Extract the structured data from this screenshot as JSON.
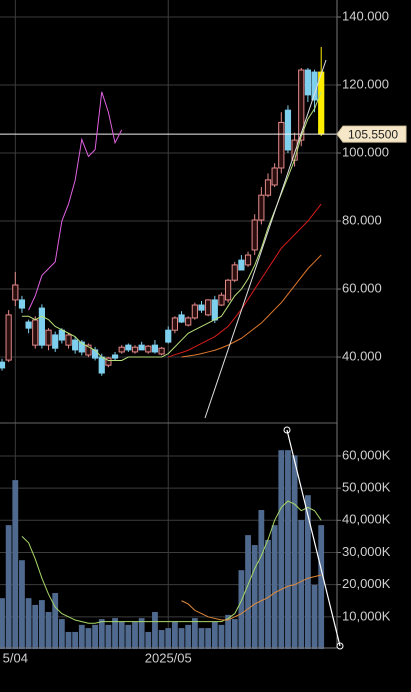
{
  "chart_data": [
    {
      "type": "candlestick",
      "categories": [
        null,
        null,
        "5/04",
        null,
        null,
        null,
        null,
        null,
        null,
        null,
        null,
        null,
        null,
        null,
        null,
        null,
        null,
        null,
        null,
        null,
        null,
        null,
        null,
        null,
        null,
        "2025/05",
        null,
        null,
        null,
        null,
        null,
        null,
        null,
        null,
        null,
        null,
        null,
        null,
        null,
        null,
        null,
        null,
        null,
        null,
        null,
        null,
        null,
        null,
        null
      ],
      "open": [
        38.5,
        39.1,
        56.8,
        56.8,
        50.3,
        43.5,
        54.4,
        43.5,
        46.5,
        47.9,
        43.5,
        45,
        44.4,
        40.6,
        42.1,
        40,
        37.6,
        40.6,
        41.5,
        43.5,
        41.5,
        43.5,
        41.5,
        43.5,
        40.9,
        47.9,
        47.9,
        52.4,
        49.4,
        51.5,
        55.3,
        52.4,
        56.8,
        55.3,
        56.8,
        62.6,
        68.5,
        67.1,
        71.5,
        80.3,
        87.6,
        90.6,
        95.6,
        112.6,
        97.9,
        103.8,
        124.4,
        123.8,
        123.8
      ],
      "high": [
        39.5,
        53.8,
        65,
        58,
        51,
        52,
        55.5,
        48.5,
        47.5,
        48.5,
        47,
        46,
        45,
        44,
        43,
        41,
        40,
        41.5,
        43.5,
        44,
        43.5,
        44.5,
        43.5,
        45,
        43,
        49,
        52,
        53.5,
        52,
        56,
        56.5,
        57,
        58,
        59,
        63,
        68,
        70,
        71,
        82,
        90,
        94,
        97,
        112,
        114,
        106,
        125,
        125,
        124.5,
        131.2
      ],
      "low": [
        36,
        38.5,
        55,
        53,
        47,
        42.5,
        42.5,
        42,
        41.5,
        44,
        42.5,
        41,
        40.5,
        40,
        39,
        34.5,
        37,
        39,
        41,
        41.5,
        41,
        42,
        41,
        41,
        40.5,
        44,
        47,
        50,
        49,
        51,
        53,
        52,
        50,
        55,
        56,
        62,
        66,
        66.5,
        70,
        79,
        87,
        90,
        94,
        100,
        96,
        102,
        115,
        112,
        105
      ],
      "close": [
        36.8,
        52.4,
        61.2,
        54.4,
        48.5,
        50.9,
        43.5,
        47.9,
        42.6,
        45,
        46.5,
        42.1,
        41.5,
        43.5,
        39.7,
        35.3,
        39.7,
        39.7,
        42.9,
        42.1,
        42.9,
        42.1,
        43.2,
        41.5,
        42.6,
        44.4,
        51.5,
        50.3,
        51.5,
        55.3,
        53.8,
        56.8,
        50.9,
        58.2,
        62.6,
        67.1,
        65.6,
        70,
        80.3,
        87.6,
        92.1,
        95.6,
        109,
        100.9,
        103.8,
        124.4,
        117.1,
        115.6,
        105.55
      ],
      "up_color": "#e48a8a",
      "down_color": "#7fd0ee",
      "last_color": "#ffee00",
      "lines": [
        {
          "color": "#e060e0",
          "values": [
            null,
            null,
            null,
            null,
            53.8,
            58,
            64,
            66,
            68,
            80,
            85,
            92,
            104,
            99,
            101,
            118,
            112,
            103,
            106.8,
            null,
            null,
            null,
            null,
            null,
            null,
            null,
            null,
            null,
            null,
            null,
            null,
            null,
            null,
            null,
            null,
            null,
            null,
            null,
            null,
            null,
            null,
            null,
            null,
            null,
            null,
            null,
            null,
            null,
            null
          ]
        },
        {
          "color": "#b8e07a",
          "values": [
            null,
            null,
            null,
            52,
            52,
            51,
            52,
            51,
            49,
            48,
            47,
            46,
            44,
            43,
            42,
            40,
            39,
            39,
            39,
            40,
            40,
            40,
            40,
            40,
            40,
            41,
            43,
            45,
            47,
            48,
            49,
            50,
            51,
            52,
            55,
            58,
            60,
            63,
            67,
            72,
            78,
            83,
            88,
            93,
            98,
            105,
            110,
            113,
            118
          ]
        },
        {
          "color": "#d81c1c",
          "values": [
            null,
            null,
            null,
            null,
            null,
            null,
            null,
            null,
            null,
            null,
            null,
            null,
            null,
            null,
            null,
            null,
            null,
            null,
            null,
            null,
            null,
            null,
            null,
            null,
            null,
            40,
            40.7,
            41.3,
            42,
            43,
            44,
            45,
            46,
            47.5,
            49,
            51.5,
            54,
            57,
            60,
            63,
            66,
            69,
            72,
            74,
            76,
            78,
            80,
            82.5,
            85
          ]
        },
        {
          "color": "#e0782c",
          "values": [
            null,
            null,
            null,
            null,
            null,
            null,
            null,
            null,
            null,
            null,
            null,
            null,
            null,
            null,
            null,
            null,
            null,
            null,
            null,
            null,
            null,
            null,
            null,
            null,
            null,
            null,
            null,
            40,
            40.3,
            40.6,
            41,
            41.5,
            42,
            42.7,
            43.5,
            44.5,
            45.5,
            47,
            48.5,
            50,
            52,
            54,
            56,
            58.5,
            61,
            63.5,
            66,
            68,
            70
          ]
        }
      ],
      "last": {
        "value": 105.55,
        "label": "105.5500"
      },
      "ylim": [
        20.9,
        145
      ],
      "yticks": [
        {
          "value": 140,
          "label": "140.000"
        },
        {
          "value": 120,
          "label": "120.000"
        },
        {
          "value": 100,
          "label": "100.000"
        },
        {
          "value": 80,
          "label": "80.000"
        },
        {
          "value": 60,
          "label": "60.000"
        },
        {
          "value": 40,
          "label": "40.000"
        }
      ],
      "grid": true
    },
    {
      "type": "bar",
      "values": [
        15800,
        38500,
        52500,
        27600,
        15800,
        13700,
        15200,
        11500,
        17400,
        9300,
        5300,
        5300,
        7500,
        6500,
        7500,
        9300,
        7500,
        9600,
        8400,
        7500,
        8400,
        9600,
        5300,
        11500,
        5900,
        6500,
        8400,
        6500,
        7500,
        9600,
        6500,
        6500,
        8400,
        7500,
        10600,
        9300,
        24500,
        35400,
        32300,
        43200,
        33900,
        38500,
        61800,
        61800,
        60200,
        40100,
        47800,
        19900,
        38500
      ],
      "color": "#4f6a8e",
      "lines": [
        {
          "color": "#a8d868",
          "values": [
            null,
            null,
            null,
            35000,
            33000,
            28000,
            22000,
            17000,
            13000,
            11000,
            10000,
            9000,
            8500,
            8000,
            8000,
            8500,
            8500,
            8500,
            8500,
            8500,
            8500,
            8500,
            8500,
            8500,
            8500,
            8500,
            8500,
            8500,
            8500,
            8500,
            8500,
            8500,
            8500,
            8500,
            9500,
            11000,
            15000,
            20000,
            25000,
            29000,
            34000,
            40000,
            44000,
            46000,
            45000,
            43000,
            44000,
            43000,
            40000
          ]
        },
        {
          "color": "#e08a3c",
          "values": [
            null,
            null,
            null,
            null,
            null,
            null,
            null,
            null,
            null,
            null,
            null,
            null,
            null,
            null,
            null,
            null,
            null,
            null,
            null,
            null,
            null,
            null,
            null,
            null,
            null,
            null,
            null,
            15000,
            14000,
            12000,
            11000,
            10000,
            9500,
            9000,
            9000,
            10000,
            11000,
            12500,
            14000,
            15000,
            16000,
            17500,
            18500,
            19500,
            20000,
            21000,
            22000,
            22500,
            23000
          ]
        }
      ],
      "ylim": [
        0,
        69000
      ],
      "yticks": [
        {
          "value": 60000,
          "label": "60,000K"
        },
        {
          "value": 50000,
          "label": "50,000K"
        },
        {
          "value": 40000,
          "label": "40,000K"
        },
        {
          "value": 30000,
          "label": "30,000K"
        },
        {
          "value": 20000,
          "label": "20,000K"
        },
        {
          "value": 10000,
          "label": "10,000K"
        }
      ],
      "grid": true
    }
  ]
}
